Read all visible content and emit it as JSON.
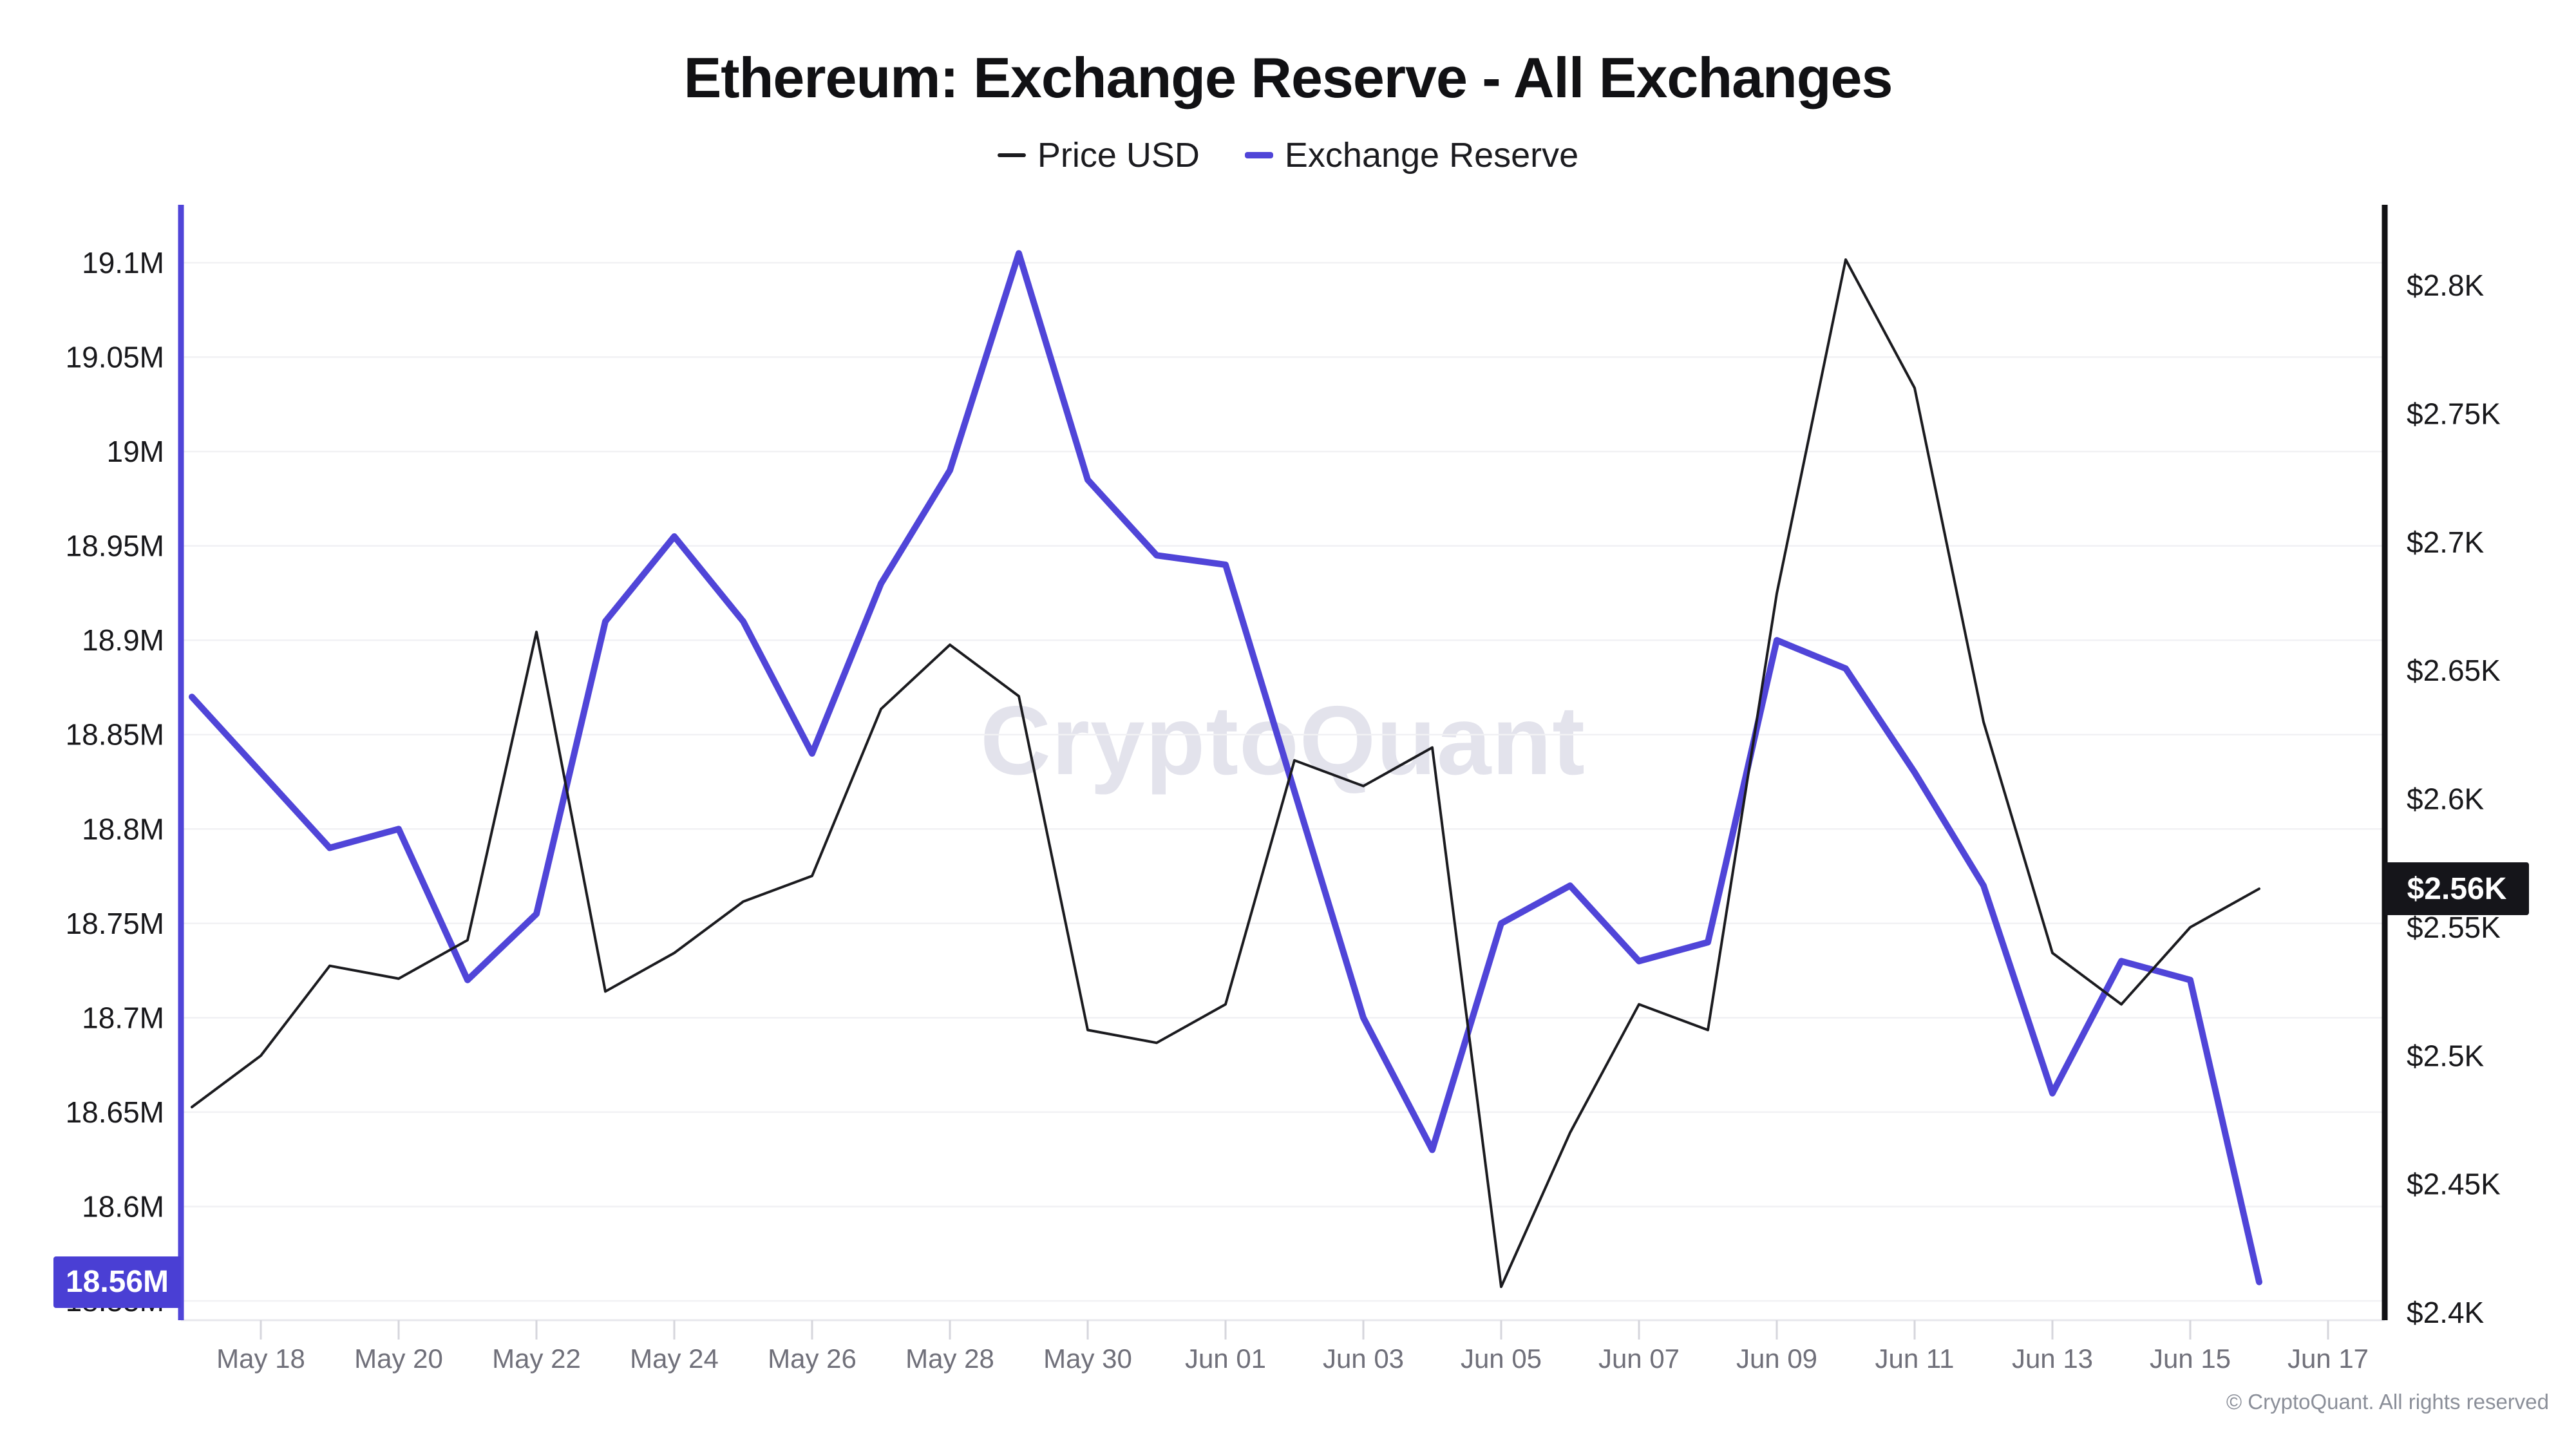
{
  "title": "Ethereum: Exchange Reserve - All Exchanges",
  "legend": [
    {
      "label": "Price USD",
      "color": "#1b1b1f"
    },
    {
      "label": "Exchange Reserve",
      "color": "#5045d8"
    }
  ],
  "watermark": "CryptoQuant",
  "copyright": "© CryptoQuant. All rights reserved",
  "badges": {
    "reserve": "18.56M",
    "price": "$2.56K"
  },
  "colors": {
    "reserve_line": "#5045d8",
    "price_line": "#1b1b1f",
    "reserve_badge_bg": "#4a3fd4",
    "price_badge_bg": "#15151a",
    "gridline": "#f1f1f4",
    "tick_label": "#70707a",
    "axis_label": "#18181b"
  },
  "chart_data": {
    "type": "line",
    "x": [
      "May 17",
      "May 18",
      "May 19",
      "May 20",
      "May 21",
      "May 22",
      "May 23",
      "May 24",
      "May 25",
      "May 26",
      "May 27",
      "May 28",
      "May 29",
      "May 30",
      "May 31",
      "Jun 01",
      "Jun 02",
      "Jun 03",
      "Jun 04",
      "Jun 05",
      "Jun 06",
      "Jun 07",
      "Jun 08",
      "Jun 09",
      "Jun 10",
      "Jun 11",
      "Jun 12",
      "Jun 13",
      "Jun 14",
      "Jun 15",
      "Jun 16"
    ],
    "x_tick_labels": [
      "May 18",
      "May 20",
      "May 22",
      "May 24",
      "May 26",
      "May 28",
      "May 30",
      "Jun 01",
      "Jun 03",
      "Jun 05",
      "Jun 07",
      "Jun 09",
      "Jun 11",
      "Jun 13",
      "Jun 15",
      "Jun 17"
    ],
    "series": [
      {
        "name": "Exchange Reserve",
        "axis": "left",
        "unit": "M ETH",
        "color": "#5045d8",
        "values": [
          18.87,
          18.83,
          18.79,
          18.8,
          18.72,
          18.755,
          18.91,
          18.955,
          18.91,
          18.84,
          18.93,
          18.99,
          19.105,
          18.985,
          18.945,
          18.94,
          18.82,
          18.7,
          18.63,
          18.75,
          18.77,
          18.73,
          18.74,
          18.9,
          18.885,
          18.83,
          18.77,
          18.66,
          18.73,
          18.72,
          18.56
        ]
      },
      {
        "name": "Price USD",
        "axis": "right",
        "unit": "$K",
        "color": "#1b1b1f",
        "values": [
          2.48,
          2.5,
          2.535,
          2.53,
          2.545,
          2.665,
          2.525,
          2.54,
          2.56,
          2.57,
          2.635,
          2.66,
          2.64,
          2.51,
          2.505,
          2.52,
          2.615,
          2.605,
          2.62,
          2.41,
          2.47,
          2.52,
          2.51,
          2.68,
          2.81,
          2.76,
          2.63,
          2.54,
          2.52,
          2.55,
          2.565
        ]
      }
    ],
    "left_axis": {
      "name": "Exchange Reserve",
      "min": 18.55,
      "max": 19.1,
      "tick_values": [
        19.1,
        19.05,
        19.0,
        18.95,
        18.9,
        18.85,
        18.8,
        18.75,
        18.7,
        18.65,
        18.6,
        18.55
      ],
      "tick_labels": [
        "19.1M",
        "19.05M",
        "19M",
        "18.95M",
        "18.9M",
        "18.85M",
        "18.8M",
        "18.75M",
        "18.7M",
        "18.65M",
        "18.6M",
        "18.55M"
      ],
      "current_value_label": "18.56M",
      "current_value": 18.56
    },
    "right_axis": {
      "name": "Price USD",
      "min": 2.4,
      "max": 2.8,
      "tick_values": [
        2.8,
        2.75,
        2.7,
        2.65,
        2.6,
        2.55,
        2.5,
        2.45,
        2.4
      ],
      "tick_labels": [
        "$2.8K",
        "$2.75K",
        "$2.7K",
        "$2.65K",
        "$2.6K",
        "$2.55K",
        "$2.5K",
        "$2.45K",
        "$2.4K"
      ],
      "current_value_label": "$2.56K",
      "current_value": 2.565
    },
    "grid": "horizontal-only",
    "legend_position": "top-center"
  }
}
